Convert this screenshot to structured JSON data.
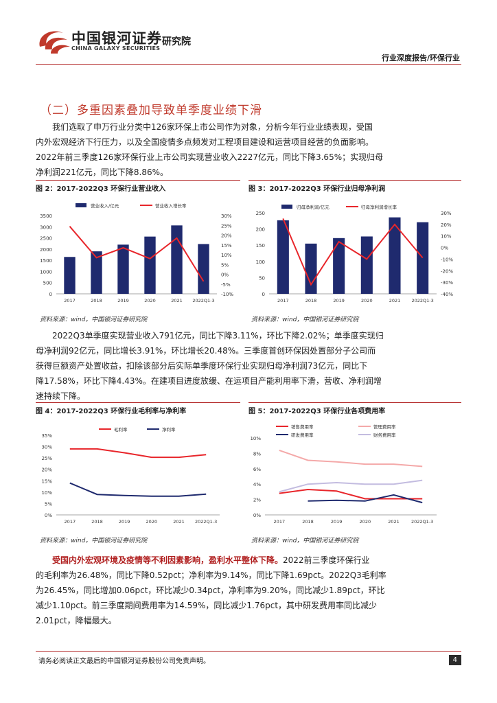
{
  "header": {
    "logo_cn": "中国银河证券",
    "logo_en": "CHINA GALAXY SECURITIES",
    "institute": "研究院",
    "right_text": "行业深度报告/环保行业"
  },
  "section_title": "（二）多重因素叠加导致单季度业绩下滑",
  "para1": [
    "我们选取了申万行业分类中126家环保上市公司作为对象，分析今年行业业绩表现，受国",
    "内外宏观经济下行压力，以及全国疫情多点频发对工程项目建设和运营项目经营的负面影响。",
    "2022年前三季度126家环保行业上市公司实现营业收入2227亿元，同比下降3.65%；实现归母",
    "净利润221亿元，同比下降8.86%。"
  ],
  "para2": [
    "2022Q3单季度实现营业收入791亿元，同比下降3.11%，环比下降2.02%；单季度实现归",
    "母净利润92亿元，同比增长3.91%，环比增长20.48%。三季度首创环保因处置部分子公司而",
    "获得巨额资产处置收益，扣除该部分后实际单季度环保行业实现归母净利润73亿元，同比下",
    "降17.58%，环比下降4.43%。在建项目进度放缓、在运项目产能利用率下滑，营收、净利润增",
    "速持续下降。"
  ],
  "para3_bold": "受国内外宏观环境及疫情等不利因素影响，盈利水平整体下降。",
  "para3_rest_first": "2022前三季度环保行业",
  "para3": [
    "的毛利率为26.48%，同比下降0.52pct；净利率为9.14%，同比下降1.69pct。2022Q3毛利率",
    "为26.45%，同比增加0.06pct，环比减少0.34pct，净利率为9.20%，同比减少1.89pct，环比",
    "减少1.10pct。前三季度期间费用率为14.59%，同比减少1.76pct，其中研发费用率同比减少",
    "2.01pct，降幅最大。"
  ],
  "fig2": {
    "title": "图 2：2017-2022Q3 环保行业营业收入",
    "source": "资料来源：wind，中国银河证券研究院"
  },
  "fig3": {
    "title": "图 3：2017-2022Q3 环保行业归母净利润",
    "source": "资料来源：wind，中国银河证券研究院"
  },
  "fig4": {
    "title": "图 4：2017-2022Q3 环保行业毛利率与净利率",
    "source": "资料来源：wind，中国银河证券研究院"
  },
  "fig5": {
    "title": "图 5：2017-2022Q3 环保行业各项费用率",
    "source": "资料来源：wind，中国银河证券研究院"
  },
  "footer": {
    "disclaimer": "请务必阅读正文最后的中国银河证券股份公司免责声明。",
    "page": "4"
  },
  "colors": {
    "accent": "#b01f1f",
    "bar": "#1f2a6e",
    "red_line": "#e8262b",
    "navy_line": "#1f2a6e",
    "pink_line": "#f4a9a9",
    "lavender_line": "#c3bce0"
  },
  "chart_data": [
    {
      "id": "fig2",
      "type": "bar+line",
      "categories": [
        "2017",
        "2018",
        "2019",
        "2020",
        "2021",
        "2022Q1-3"
      ],
      "series": [
        {
          "name": "营业收入/亿元",
          "type": "bar",
          "axis": "left",
          "values": [
            1650,
            1900,
            2200,
            2560,
            3060,
            2227
          ]
        },
        {
          "name": "营业收入增长率",
          "type": "line",
          "axis": "right",
          "values": [
            24.5,
            8.5,
            13.5,
            8.0,
            18.5,
            -3.65
          ]
        }
      ],
      "left_axis": {
        "min": 0,
        "max": 3500,
        "step": 500,
        "ticks": [
          "0",
          "500",
          "1000",
          "1500",
          "2000",
          "2500",
          "3000",
          "3500"
        ]
      },
      "right_axis": {
        "min": -10,
        "max": 30,
        "step": 5,
        "ticks": [
          "-10%",
          "-5%",
          "0%",
          "5%",
          "10%",
          "15%",
          "20%",
          "25%",
          "30%"
        ]
      }
    },
    {
      "id": "fig3",
      "type": "bar+line",
      "categories": [
        "2017",
        "2018",
        "2019",
        "2020",
        "2021",
        "2022Q1-3"
      ],
      "series": [
        {
          "name": "归母净利润/亿元",
          "type": "bar",
          "axis": "left",
          "values": [
            227,
            155,
            172,
            177,
            236,
            221
          ]
        },
        {
          "name": "归母净利润增长率",
          "type": "line",
          "axis": "right",
          "values": [
            25,
            -32,
            5,
            -10,
            20,
            -8.86
          ]
        }
      ],
      "left_axis": {
        "min": 0,
        "max": 250,
        "step": 50,
        "ticks": [
          "0",
          "50",
          "100",
          "150",
          "200",
          "250"
        ]
      },
      "right_axis": {
        "min": -40,
        "max": 30,
        "step": 10,
        "ticks": [
          "-40%",
          "-30%",
          "-20%",
          "-10%",
          "0%",
          "10%",
          "20%",
          "30%"
        ]
      }
    },
    {
      "id": "fig4",
      "type": "line",
      "categories": [
        "2017",
        "2018",
        "2019",
        "2020",
        "2021",
        "2022Q1-3"
      ],
      "series": [
        {
          "name": "毛利率",
          "values": [
            29.0,
            29.0,
            27.3,
            25.3,
            25.3,
            26.48
          ]
        },
        {
          "name": "净利率",
          "values": [
            14.0,
            9.0,
            8.5,
            8.2,
            8.2,
            9.14
          ]
        }
      ],
      "left_axis": {
        "min": 0,
        "max": 35,
        "step": 5,
        "ticks": [
          "0%",
          "5%",
          "10%",
          "15%",
          "20%",
          "25%",
          "30%",
          "35%"
        ]
      }
    },
    {
      "id": "fig5",
      "type": "line",
      "categories": [
        "2017",
        "2018",
        "2019",
        "2020",
        "2021",
        "2022Q1-3"
      ],
      "series": [
        {
          "name": "销售费用率",
          "values": [
            2.8,
            3.3,
            3.1,
            2.1,
            2.1,
            2.1
          ]
        },
        {
          "name": "管理费用率",
          "values": [
            8.4,
            7.1,
            6.9,
            6.6,
            6.6,
            6.3
          ]
        },
        {
          "name": "研发费用率",
          "values": [
            null,
            1.8,
            1.9,
            1.8,
            2.6,
            1.6
          ]
        },
        {
          "name": "财务费用率",
          "values": [
            3.0,
            4.0,
            4.2,
            4.0,
            4.0,
            4.5
          ]
        }
      ],
      "left_axis": {
        "min": 0,
        "max": 10,
        "step": 2,
        "ticks": [
          "0%",
          "2%",
          "4%",
          "6%",
          "8%",
          "10%"
        ]
      }
    }
  ]
}
